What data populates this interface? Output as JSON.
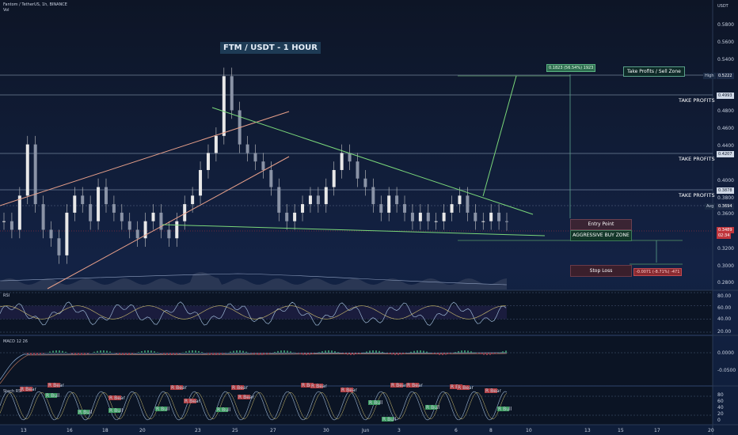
{
  "header": {
    "symbol_line": "Fantom / TetherUS, 1h, BINANCE",
    "vol_label": "Vol",
    "currency": "USDT"
  },
  "title": "FTM / USDT - 1 HOUR",
  "annotations": {
    "take_profits_sell_zone": "Take Profits / Sell Zone",
    "take_profits_1": "TAKE PROFITS",
    "take_profits_2": "TAKE PROFITS",
    "take_profits_3": "TAKE PROFITS",
    "entry_point": "Entry Point",
    "aggressive_buy_zone": "AGGRESSIVE BUY ZONE",
    "stop_loss": "Stop Loss",
    "target_measure": "0.1823 (56.54%) 1923",
    "stop_measure": "-0.0071 (-8.71%) -471"
  },
  "price_labels": {
    "high_tag": "High",
    "high": "0.5222",
    "tp1": "0.4993",
    "tp2": "0.4207",
    "tp3": "0.3878",
    "avg_tag": "Avg",
    "avg": "0.3694",
    "last": "0.3489",
    "countdown": "02:34"
  },
  "colors": {
    "bg_top": "#0d1526",
    "bg_bottom": "#0f1e3a",
    "wedge": "#7ad77a",
    "channel": "#e8a08a",
    "candle": "#c8c8c8",
    "rsi": "#9bb6d4",
    "sell_zone": "#1f4d3f",
    "entry": "#3a2a34",
    "stop": "#5a1e28"
  },
  "chart_data": [
    {
      "type": "line",
      "name": "price",
      "ylabel": "",
      "ylim": [
        0.27,
        0.6
      ],
      "y_ticks": [
        "0.5800",
        "0.5600",
        "0.5400",
        "0.5000",
        "0.4800",
        "0.4600",
        "0.4400",
        "0.4000",
        "0.3800",
        "0.3600",
        "0.3400",
        "0.3200",
        "0.3000",
        "0.2800"
      ],
      "x_ticks": [
        "13",
        "16",
        "18",
        "20",
        "23",
        "25",
        "27",
        "30",
        "Jun",
        "3",
        "6",
        "8",
        "10",
        "13",
        "15",
        "17",
        "20"
      ],
      "series": [
        {
          "values": [
            0.35,
            0.34,
            0.38,
            0.44,
            0.37,
            0.34,
            0.33,
            0.31,
            0.36,
            0.38,
            0.37,
            0.35,
            0.39,
            0.37,
            0.36,
            0.35,
            0.34,
            0.33,
            0.35,
            0.36,
            0.34,
            0.33,
            0.35,
            0.37,
            0.38,
            0.41,
            0.43,
            0.45,
            0.52,
            0.48,
            0.44,
            0.43,
            0.42,
            0.41,
            0.39,
            0.36,
            0.35,
            0.36,
            0.37,
            0.38,
            0.37,
            0.39,
            0.41,
            0.43,
            0.42,
            0.4,
            0.39,
            0.37,
            0.36,
            0.38,
            0.37,
            0.36,
            0.35,
            0.36,
            0.35,
            0.35,
            0.36,
            0.37,
            0.38,
            0.36,
            0.35,
            0.35,
            0.36,
            0.35,
            0.349
          ]
        }
      ]
    },
    {
      "type": "line",
      "name": "RSI",
      "ylim": [
        20,
        80
      ],
      "y_ticks": [
        "80.00",
        "60.00",
        "40.00",
        "20.00"
      ]
    },
    {
      "type": "line",
      "name": "MACD 12 26",
      "y_ticks": [
        "0.0000",
        "-0.0500"
      ]
    },
    {
      "type": "line",
      "name": "Stoch RSI",
      "ylim": [
        0,
        100
      ],
      "y_ticks": [
        "80",
        "60",
        "40",
        "20",
        "0"
      ],
      "signals_bear": [
        "R Bear",
        "R Bear",
        "R Bear",
        "R Bear",
        "R Bear",
        "R Bear",
        "R Bear",
        "R Bear",
        "R Bear",
        "R Bear",
        "R Bear",
        "R Bear",
        "R Bear",
        "R Bear",
        "R Bear"
      ],
      "signals_bull": [
        "R Bull",
        "R Bull",
        "R Bull",
        "R Bull",
        "R Bull",
        "R Bull",
        "R Bull",
        "R Bull",
        "R Bull"
      ]
    }
  ],
  "panel_labels": {
    "rsi": "RSI",
    "macd": "MACD 12 26",
    "stoch": "Stoch RSI"
  }
}
